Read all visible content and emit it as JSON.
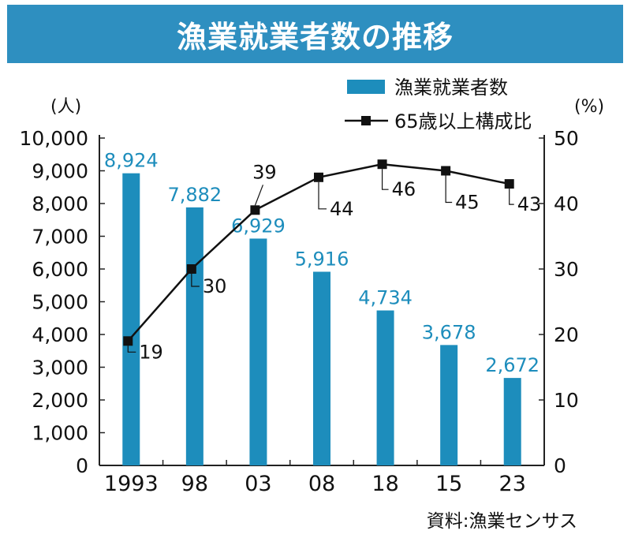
{
  "title": "漁業就業者数の推移",
  "source": "資料:漁業センサス",
  "colors": {
    "title_bg": "#2e8fc0",
    "bar": "#1d8dbc",
    "bar_label": "#1d8dbc",
    "line": "#111111"
  },
  "chart_data": {
    "type": "bar+line",
    "title": "漁業就業者数の推移",
    "categories": [
      "1993",
      "98",
      "03",
      "08",
      "18",
      "15",
      "23"
    ],
    "series": [
      {
        "name": "漁業就業者数",
        "type": "bar",
        "axis": "left",
        "values": [
          8924,
          7882,
          6929,
          5916,
          4734,
          3678,
          2672
        ],
        "labels": [
          "8,924",
          "7,882",
          "6,929",
          "5,916",
          "4,734",
          "3,678",
          "2,672"
        ]
      },
      {
        "name": "65歳以上構成比",
        "type": "line",
        "axis": "right",
        "values": [
          19,
          30,
          39,
          44,
          46,
          45,
          43
        ],
        "labels": [
          "19",
          "30",
          "39",
          "44",
          "46",
          "45",
          "43"
        ]
      }
    ],
    "y_left": {
      "unit": "(人)",
      "lim": [
        0,
        10000
      ],
      "ticks": [
        "0",
        "1,000",
        "2,000",
        "3,000",
        "4,000",
        "5,000",
        "6,000",
        "7,000",
        "8,000",
        "9,000",
        "10,000"
      ]
    },
    "y_right": {
      "unit": "(%)",
      "lim": [
        0,
        50
      ],
      "ticks": [
        "0",
        "10",
        "20",
        "30",
        "40",
        "50"
      ]
    },
    "legend_position": "top-right",
    "grid": false
  }
}
